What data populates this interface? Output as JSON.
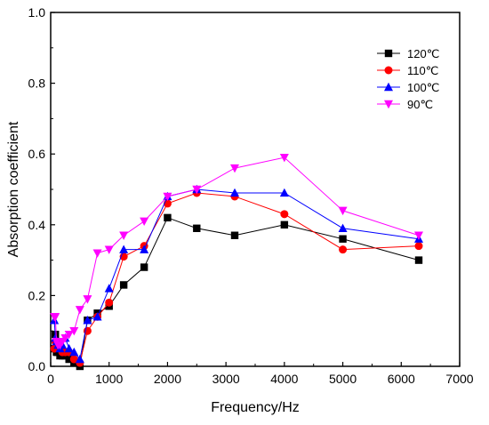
{
  "chart_data": {
    "type": "line",
    "title": "",
    "xlabel": "Frequency/Hz",
    "ylabel": "Absorption coefficient",
    "xlim": [
      0,
      7000
    ],
    "ylim": [
      0,
      1.0
    ],
    "xticks": [
      0,
      1000,
      2000,
      3000,
      4000,
      5000,
      6000,
      7000
    ],
    "yticks": [
      0.0,
      0.2,
      0.4,
      0.6,
      0.8,
      1.0
    ],
    "xtick_labels": [
      "0",
      "1000",
      "2000",
      "3000",
      "4000",
      "5000",
      "6000",
      "7000"
    ],
    "ytick_labels": [
      "0.0",
      "0.2",
      "0.4",
      "0.6",
      "0.8",
      "1.0"
    ],
    "grid": false,
    "legend_position": "top-right",
    "series": [
      {
        "name": "120℃",
        "color": "#000000",
        "marker": "square",
        "x": [
          63,
          80,
          100,
          125,
          160,
          200,
          250,
          315,
          400,
          500,
          630,
          800,
          1000,
          1250,
          1600,
          2000,
          2500,
          3150,
          4000,
          5000,
          6300
        ],
        "y": [
          0.05,
          0.09,
          0.04,
          0.04,
          0.03,
          0.03,
          0.03,
          0.02,
          0.01,
          0.0,
          0.13,
          0.15,
          0.17,
          0.23,
          0.28,
          0.42,
          0.39,
          0.37,
          0.4,
          0.36,
          0.3
        ]
      },
      {
        "name": "110℃",
        "color": "#ff0000",
        "marker": "circle",
        "x": [
          63,
          80,
          100,
          125,
          160,
          200,
          250,
          315,
          400,
          500,
          630,
          800,
          1000,
          1250,
          1600,
          2000,
          2500,
          3150,
          4000,
          5000,
          6300
        ],
        "y": [
          0.05,
          0.07,
          0.07,
          0.06,
          0.05,
          0.04,
          0.04,
          0.04,
          0.02,
          0.01,
          0.1,
          0.14,
          0.18,
          0.31,
          0.34,
          0.46,
          0.49,
          0.48,
          0.43,
          0.33,
          0.34
        ]
      },
      {
        "name": "100℃",
        "color": "#0000ff",
        "marker": "triangle-up",
        "x": [
          63,
          80,
          100,
          125,
          160,
          200,
          250,
          315,
          400,
          500,
          630,
          800,
          1000,
          1250,
          1600,
          2000,
          2500,
          3150,
          4000,
          5000,
          6300
        ],
        "y": [
          0.13,
          0.08,
          0.07,
          0.06,
          0.05,
          0.06,
          0.08,
          0.05,
          0.04,
          0.02,
          0.13,
          0.14,
          0.22,
          0.33,
          0.33,
          0.48,
          0.5,
          0.49,
          0.49,
          0.39,
          0.36
        ]
      },
      {
        "name": "90℃",
        "color": "#ff00ff",
        "marker": "triangle-down",
        "x": [
          63,
          80,
          100,
          125,
          160,
          200,
          250,
          315,
          400,
          500,
          630,
          800,
          1000,
          1250,
          1600,
          2000,
          2500,
          3150,
          4000,
          5000,
          6300
        ],
        "y": [
          0.14,
          0.14,
          0.07,
          0.06,
          0.06,
          0.07,
          0.08,
          0.09,
          0.1,
          0.16,
          0.19,
          0.32,
          0.33,
          0.37,
          0.41,
          0.48,
          0.5,
          0.56,
          0.59,
          0.44,
          0.37
        ]
      }
    ]
  }
}
